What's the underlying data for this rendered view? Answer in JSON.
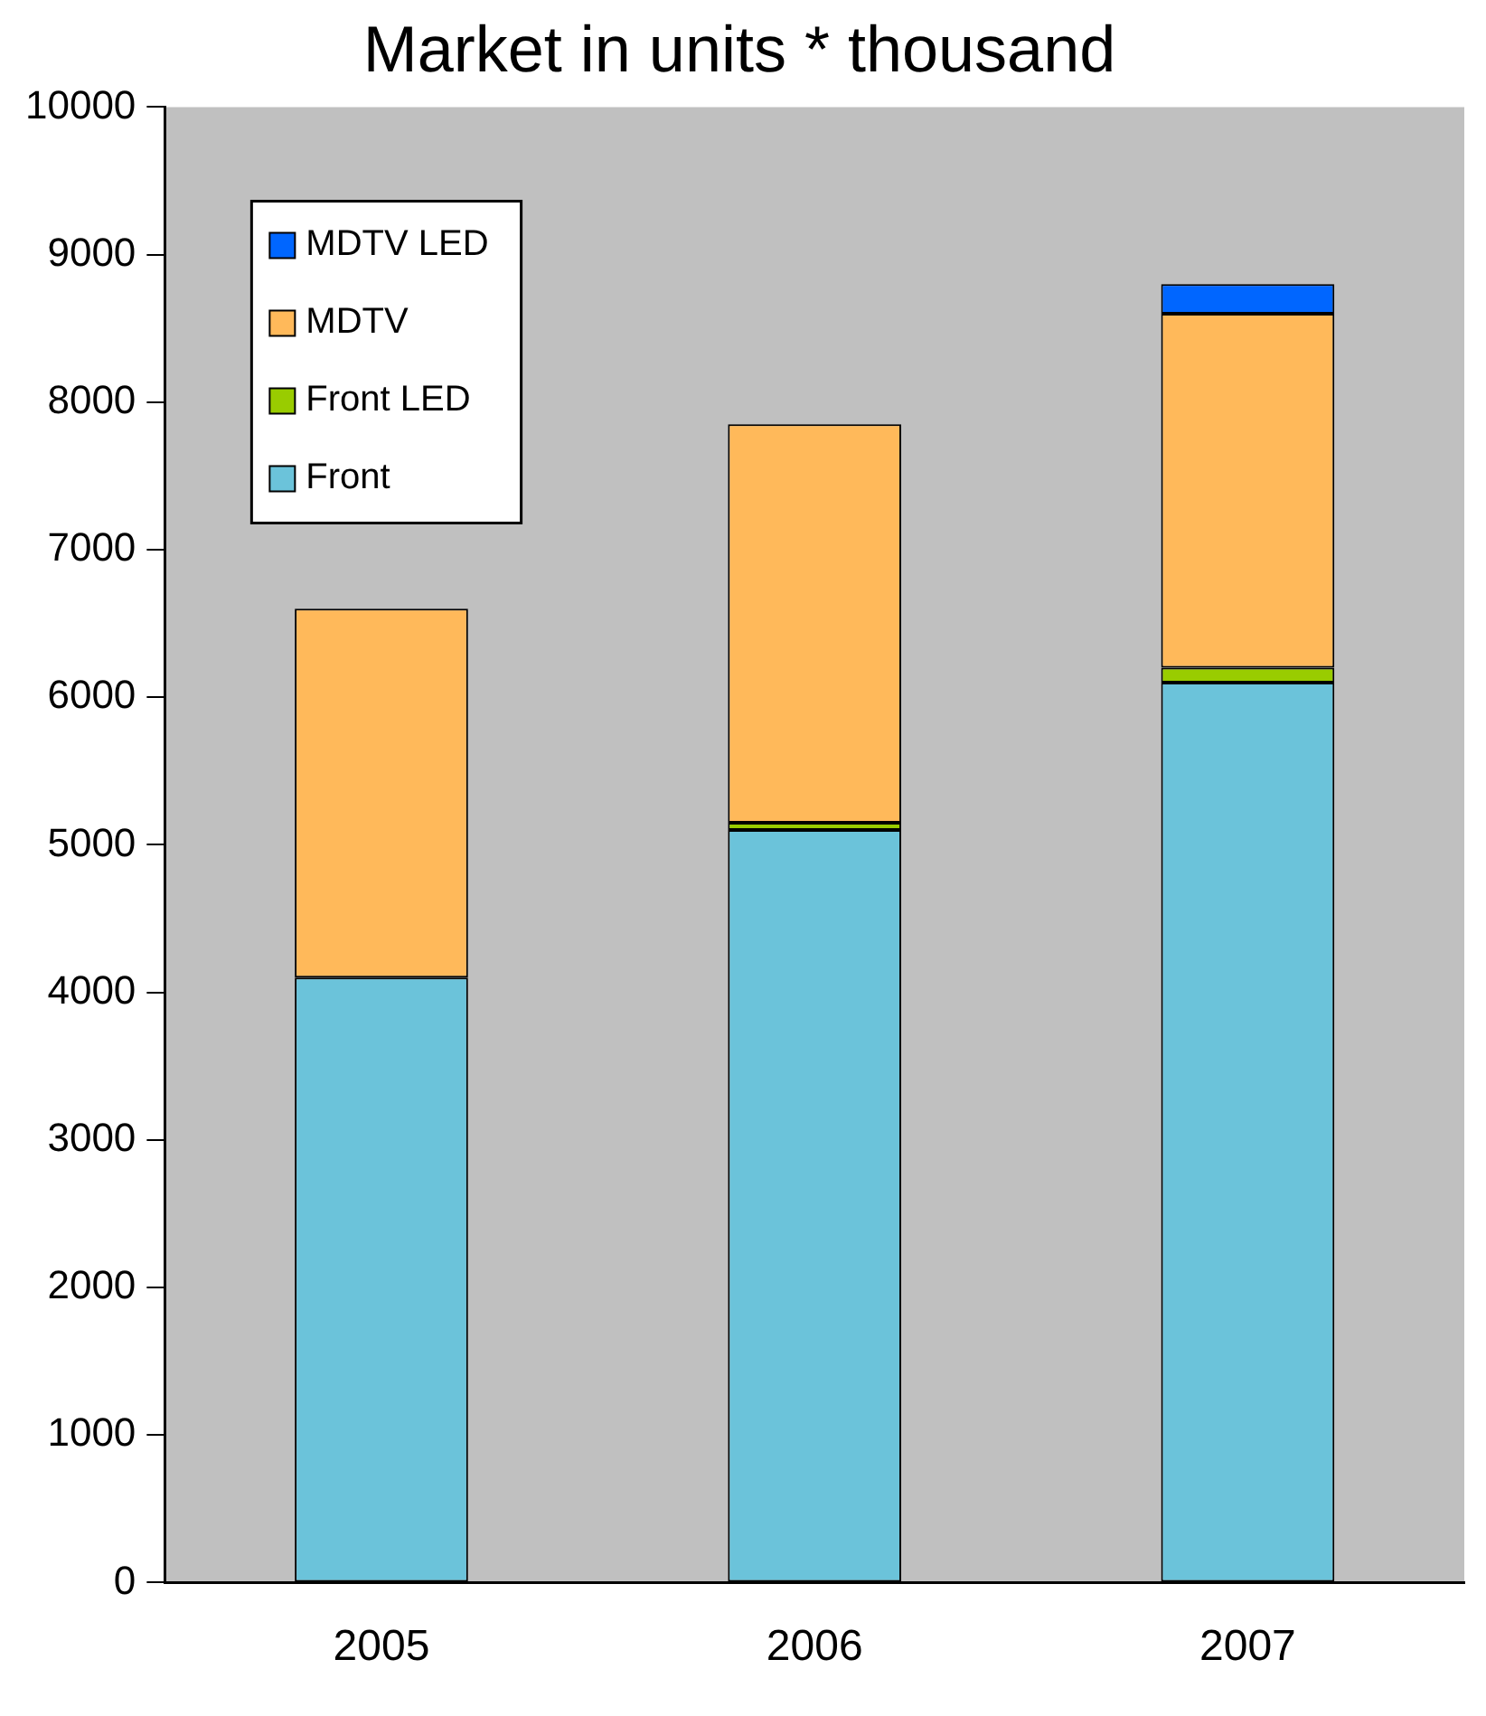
{
  "chart_data": {
    "type": "bar",
    "title": "Market in units * thousand",
    "categories": [
      "2005",
      "2006",
      "2007"
    ],
    "stacked": true,
    "ylim": [
      0,
      10000
    ],
    "yticks": [
      0,
      1000,
      2000,
      3000,
      4000,
      5000,
      6000,
      7000,
      8000,
      9000,
      10000
    ],
    "grid": false,
    "legend": "top left",
    "series": [
      {
        "name": "Front",
        "color": "#6bc3da",
        "values": [
          4100,
          5100,
          6100
        ]
      },
      {
        "name": "Front LED",
        "color": "#99cc00",
        "values": [
          0,
          50,
          100
        ]
      },
      {
        "name": "MDTV",
        "color": "#ffb95a",
        "values": [
          2500,
          2700,
          2400
        ]
      },
      {
        "name": "MDTV LED",
        "color": "#0066ff",
        "values": [
          0,
          0,
          200
        ]
      }
    ]
  }
}
